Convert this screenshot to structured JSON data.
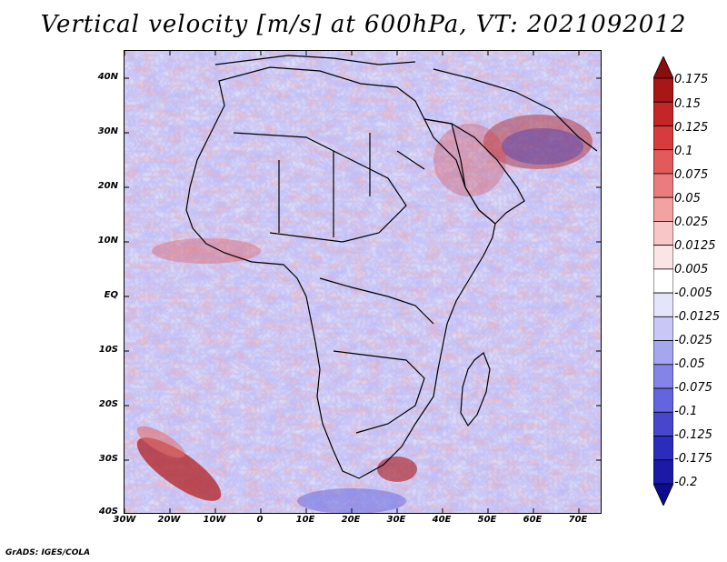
{
  "title": "Vertical velocity [m/s] at 600hPa, VT: 2021092012",
  "credit": "GrADS: IGES/COLA",
  "map": {
    "lat_ticks": [
      "40N",
      "30N",
      "20N",
      "10N",
      "EQ",
      "10S",
      "20S",
      "30S",
      "40S"
    ],
    "lon_ticks": [
      "30W",
      "20W",
      "10W",
      "0",
      "10E",
      "20E",
      "30E",
      "40E",
      "50E",
      "60E",
      "70E"
    ],
    "lat_range": [
      -40,
      45
    ],
    "lon_range": [
      -30,
      75
    ]
  },
  "colorbar": {
    "labels": [
      "0.175",
      "0.15",
      "0.125",
      "0.1",
      "0.075",
      "0.05",
      "0.025",
      "0.0125",
      "0.005",
      "-0.005",
      "-0.0125",
      "-0.025",
      "-0.05",
      "-0.075",
      "-0.1",
      "-0.125",
      "-0.175",
      "-0.2"
    ],
    "colors": [
      "#8b0d0d",
      "#a81616",
      "#c22626",
      "#d63c3c",
      "#e25a5a",
      "#ec7c7c",
      "#f3a2a2",
      "#f8c6c6",
      "#fbe4e4",
      "#ffffff",
      "#e4e4fb",
      "#c8c8f6",
      "#a6a6f0",
      "#8484e8",
      "#6464de",
      "#4646cf",
      "#2c2cbc",
      "#1a1aa6",
      "#0c0c8c"
    ]
  }
}
